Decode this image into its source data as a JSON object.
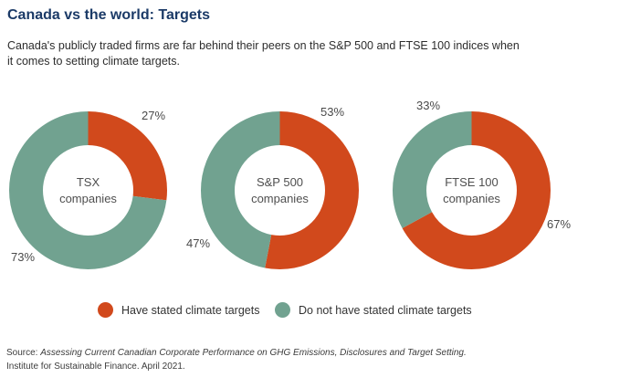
{
  "header": {
    "title": "Canada vs the world: Targets",
    "subtitle_line1": "Canada's publicly traded firms are far behind their peers on the S&P 500 and FTSE 100 indices when",
    "subtitle_line2": "it comes to setting climate targets."
  },
  "colors": {
    "accent_red": "#d1491c",
    "accent_green": "#71a290",
    "title_navy": "#1b3a67"
  },
  "chart_data": {
    "type": "pie",
    "subtype": "donut",
    "title": "Canada vs the world: Targets",
    "start_angle": "12 o'clock, clockwise, 'have targets' slice first",
    "legend_position": "bottom",
    "donuts": [
      {
        "name": "TSX companies",
        "center_line1": "TSX",
        "center_line2": "companies",
        "slices": [
          {
            "label": "Have stated climate targets",
            "value": 27,
            "display": "27%"
          },
          {
            "label": "Do not have stated climate targets",
            "value": 73,
            "display": "73%"
          }
        ]
      },
      {
        "name": "S&P 500 companies",
        "center_line1": "S&P 500",
        "center_line2": "companies",
        "slices": [
          {
            "label": "Have stated climate targets",
            "value": 53,
            "display": "53%"
          },
          {
            "label": "Do not have stated climate targets",
            "value": 47,
            "display": "47%"
          }
        ]
      },
      {
        "name": "FTSE 100 companies",
        "center_line1": "FTSE 100",
        "center_line2": "companies",
        "slices": [
          {
            "label": "Have stated climate targets",
            "value": 67,
            "display": "67%"
          },
          {
            "label": "Do not have stated climate targets",
            "value": 33,
            "display": "33%"
          }
        ]
      }
    ],
    "legend": [
      {
        "label": "Have stated climate targets",
        "color": "#d1491c"
      },
      {
        "label": "Do not have stated climate targets",
        "color": "#71a290"
      }
    ]
  },
  "source": {
    "prefix": "Source: ",
    "citation": "Assessing Current Canadian Corporate Performance on GHG Emissions, Disclosures and Target Setting.",
    "line2": "Institute for Sustainable Finance. April 2021."
  }
}
